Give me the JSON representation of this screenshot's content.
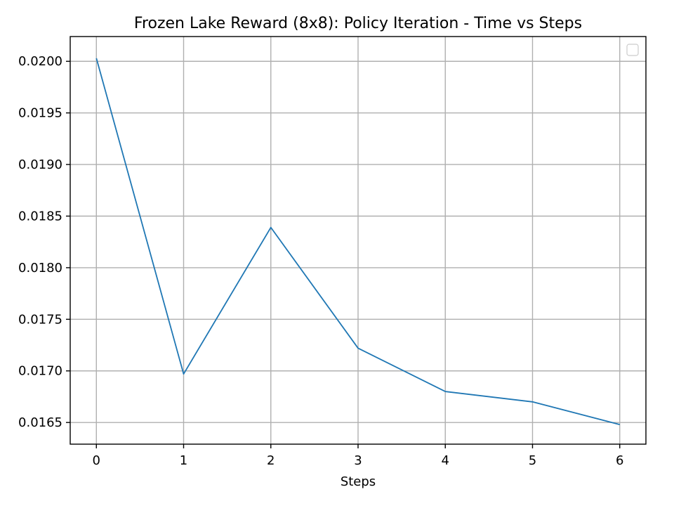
{
  "chart_data": {
    "type": "line",
    "title": "Frozen Lake Reward (8x8): Policy Iteration - Time vs Steps",
    "xlabel": "Steps",
    "ylabel": "",
    "x": [
      0,
      1,
      2,
      3,
      4,
      5,
      6
    ],
    "x_ticks": [
      0,
      1,
      2,
      3,
      4,
      5,
      6
    ],
    "xlim": [
      -0.3,
      6.3
    ],
    "y_ticks": [
      0.0165,
      0.017,
      0.0175,
      0.018,
      0.0185,
      0.019,
      0.0195,
      0.02
    ],
    "y_tick_labels": [
      "0.0165",
      "0.0170",
      "0.0175",
      "0.0180",
      "0.0185",
      "0.0190",
      "0.0195",
      "0.0200"
    ],
    "ylim": [
      0.01629,
      0.02024
    ],
    "grid": true,
    "legend": "top-right",
    "series": [
      {
        "values": [
          0.02003,
          0.01697,
          0.01839,
          0.01722,
          0.0168,
          0.0167,
          0.01648
        ],
        "color": "#1f77b4"
      }
    ]
  }
}
